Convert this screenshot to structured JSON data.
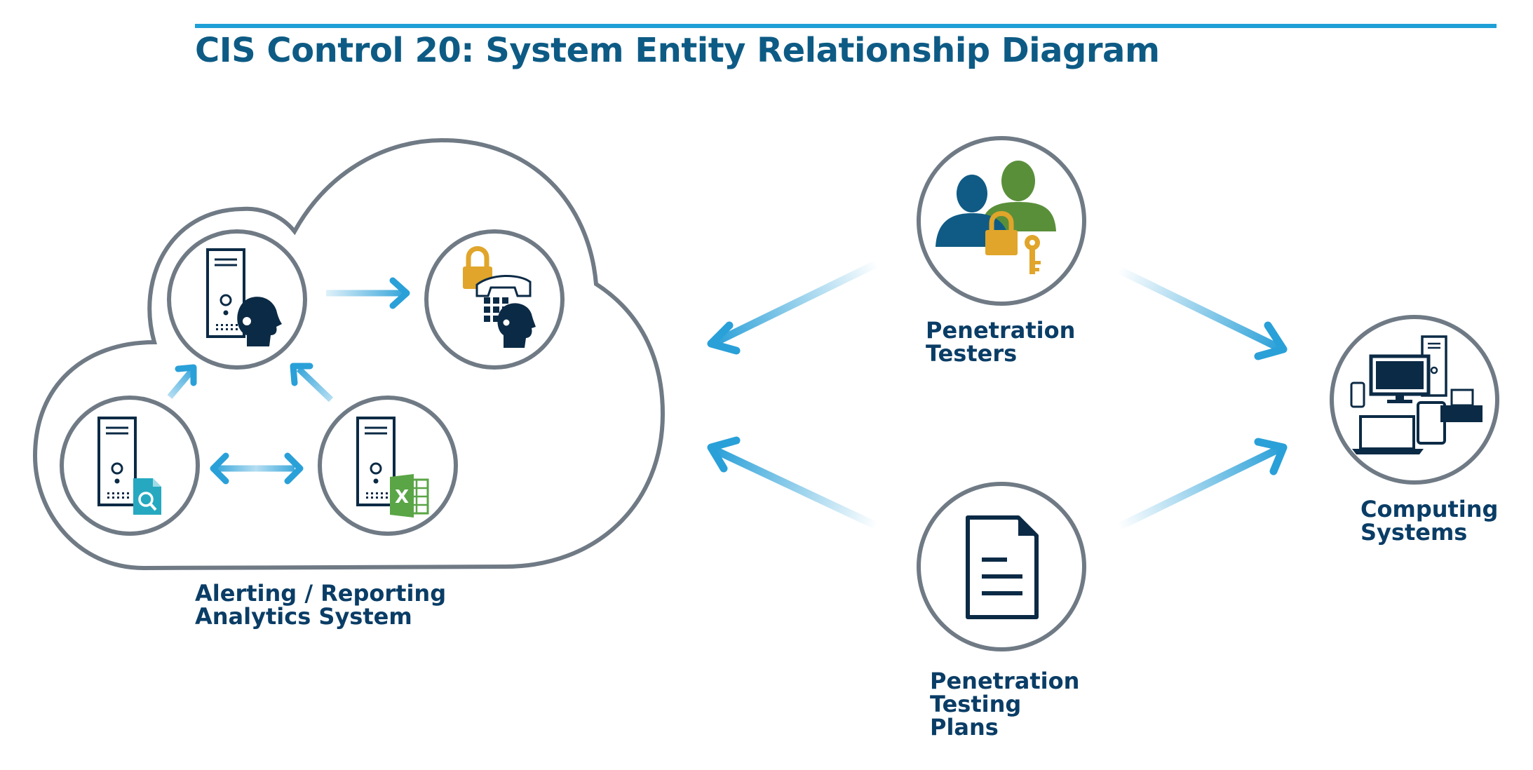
{
  "title": "CIS Control 20: System Entity Relationship Diagram",
  "colors": {
    "title": "#0d5b85",
    "rule": "#1ea0d6",
    "label": "#0a3d66",
    "outline": "#6f7a85",
    "arrow": "#2aa0d8",
    "navy": "#0b2a45",
    "person_blue": "#0f5b85",
    "person_green": "#5a8f3a",
    "gold": "#e0a52a",
    "teal": "#26a9c0",
    "excel_green": "#5aa546"
  },
  "nodes": {
    "testers": {
      "label_lines": [
        "Penetration",
        "Testers"
      ],
      "icon": "users-lock-key-icon"
    },
    "plans": {
      "label_lines": [
        "Penetration",
        "Testing",
        "Plans"
      ],
      "icon": "document-icon"
    },
    "computing": {
      "label_lines": [
        "Computing",
        "Systems"
      ],
      "icon": "devices-icon"
    },
    "cloud": {
      "label_lines": [
        "Alerting / Reporting",
        "Analytics System"
      ],
      "icon": "cloud-icon"
    }
  },
  "excel_glyph": "X"
}
